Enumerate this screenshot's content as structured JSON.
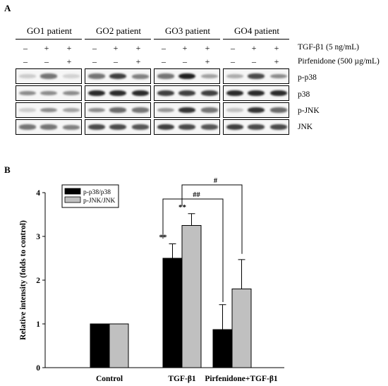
{
  "panel_a": {
    "label": "A",
    "patients": [
      "GO1 patient",
      "GO2 patient",
      "GO3 patient",
      "GO4 patient"
    ],
    "conditions": [
      {
        "label": "TGF-β1 (5 ng/mL)",
        "signs": [
          "–",
          "+",
          "+"
        ]
      },
      {
        "label": "Pirfenidone (500 µg/mL)",
        "signs": [
          "–",
          "–",
          "+"
        ]
      }
    ],
    "blot_rows": [
      "p-p38",
      "p38",
      "p-JNK",
      "JNK"
    ],
    "band_intensities": [
      [
        [
          0.15,
          0.55,
          0.12
        ],
        [
          0.55,
          0.8,
          0.5
        ],
        [
          0.55,
          0.95,
          0.35
        ],
        [
          0.3,
          0.75,
          0.45
        ]
      ],
      [
        [
          0.45,
          0.45,
          0.45
        ],
        [
          0.9,
          0.9,
          0.9
        ],
        [
          0.8,
          0.8,
          0.8
        ],
        [
          0.9,
          0.9,
          0.9
        ]
      ],
      [
        [
          0.15,
          0.45,
          0.35
        ],
        [
          0.45,
          0.6,
          0.55
        ],
        [
          0.4,
          0.85,
          0.55
        ],
        [
          0.2,
          0.85,
          0.6
        ]
      ],
      [
        [
          0.55,
          0.55,
          0.5
        ],
        [
          0.75,
          0.75,
          0.7
        ],
        [
          0.8,
          0.75,
          0.7
        ],
        [
          0.8,
          0.75,
          0.75
        ]
      ]
    ]
  },
  "panel_b": {
    "label": "B"
  },
  "chart_data": {
    "type": "bar",
    "categories": [
      "Control",
      "TGF-β1",
      "Pirfenidone+TGF-β1"
    ],
    "series": [
      {
        "name": "p-p38/p38",
        "color": "#000000",
        "values": [
          1.0,
          2.5,
          0.87
        ],
        "errors": [
          0,
          0.33,
          0.57
        ]
      },
      {
        "name": "p-JNK/JNK",
        "color": "#c0c0c0",
        "values": [
          1.0,
          3.25,
          1.8
        ],
        "errors": [
          0,
          0.27,
          0.67
        ]
      }
    ],
    "ylabel": "Relative intensity (folds to control)",
    "xlabel": "",
    "ylim": [
      0,
      4
    ],
    "yticks": [
      "0",
      "1",
      "2",
      "3",
      "4"
    ],
    "legend_position": "top-left",
    "grid": false,
    "annotations": {
      "significance": [
        "**",
        "**"
      ],
      "brackets": [
        "##",
        "#"
      ]
    }
  }
}
